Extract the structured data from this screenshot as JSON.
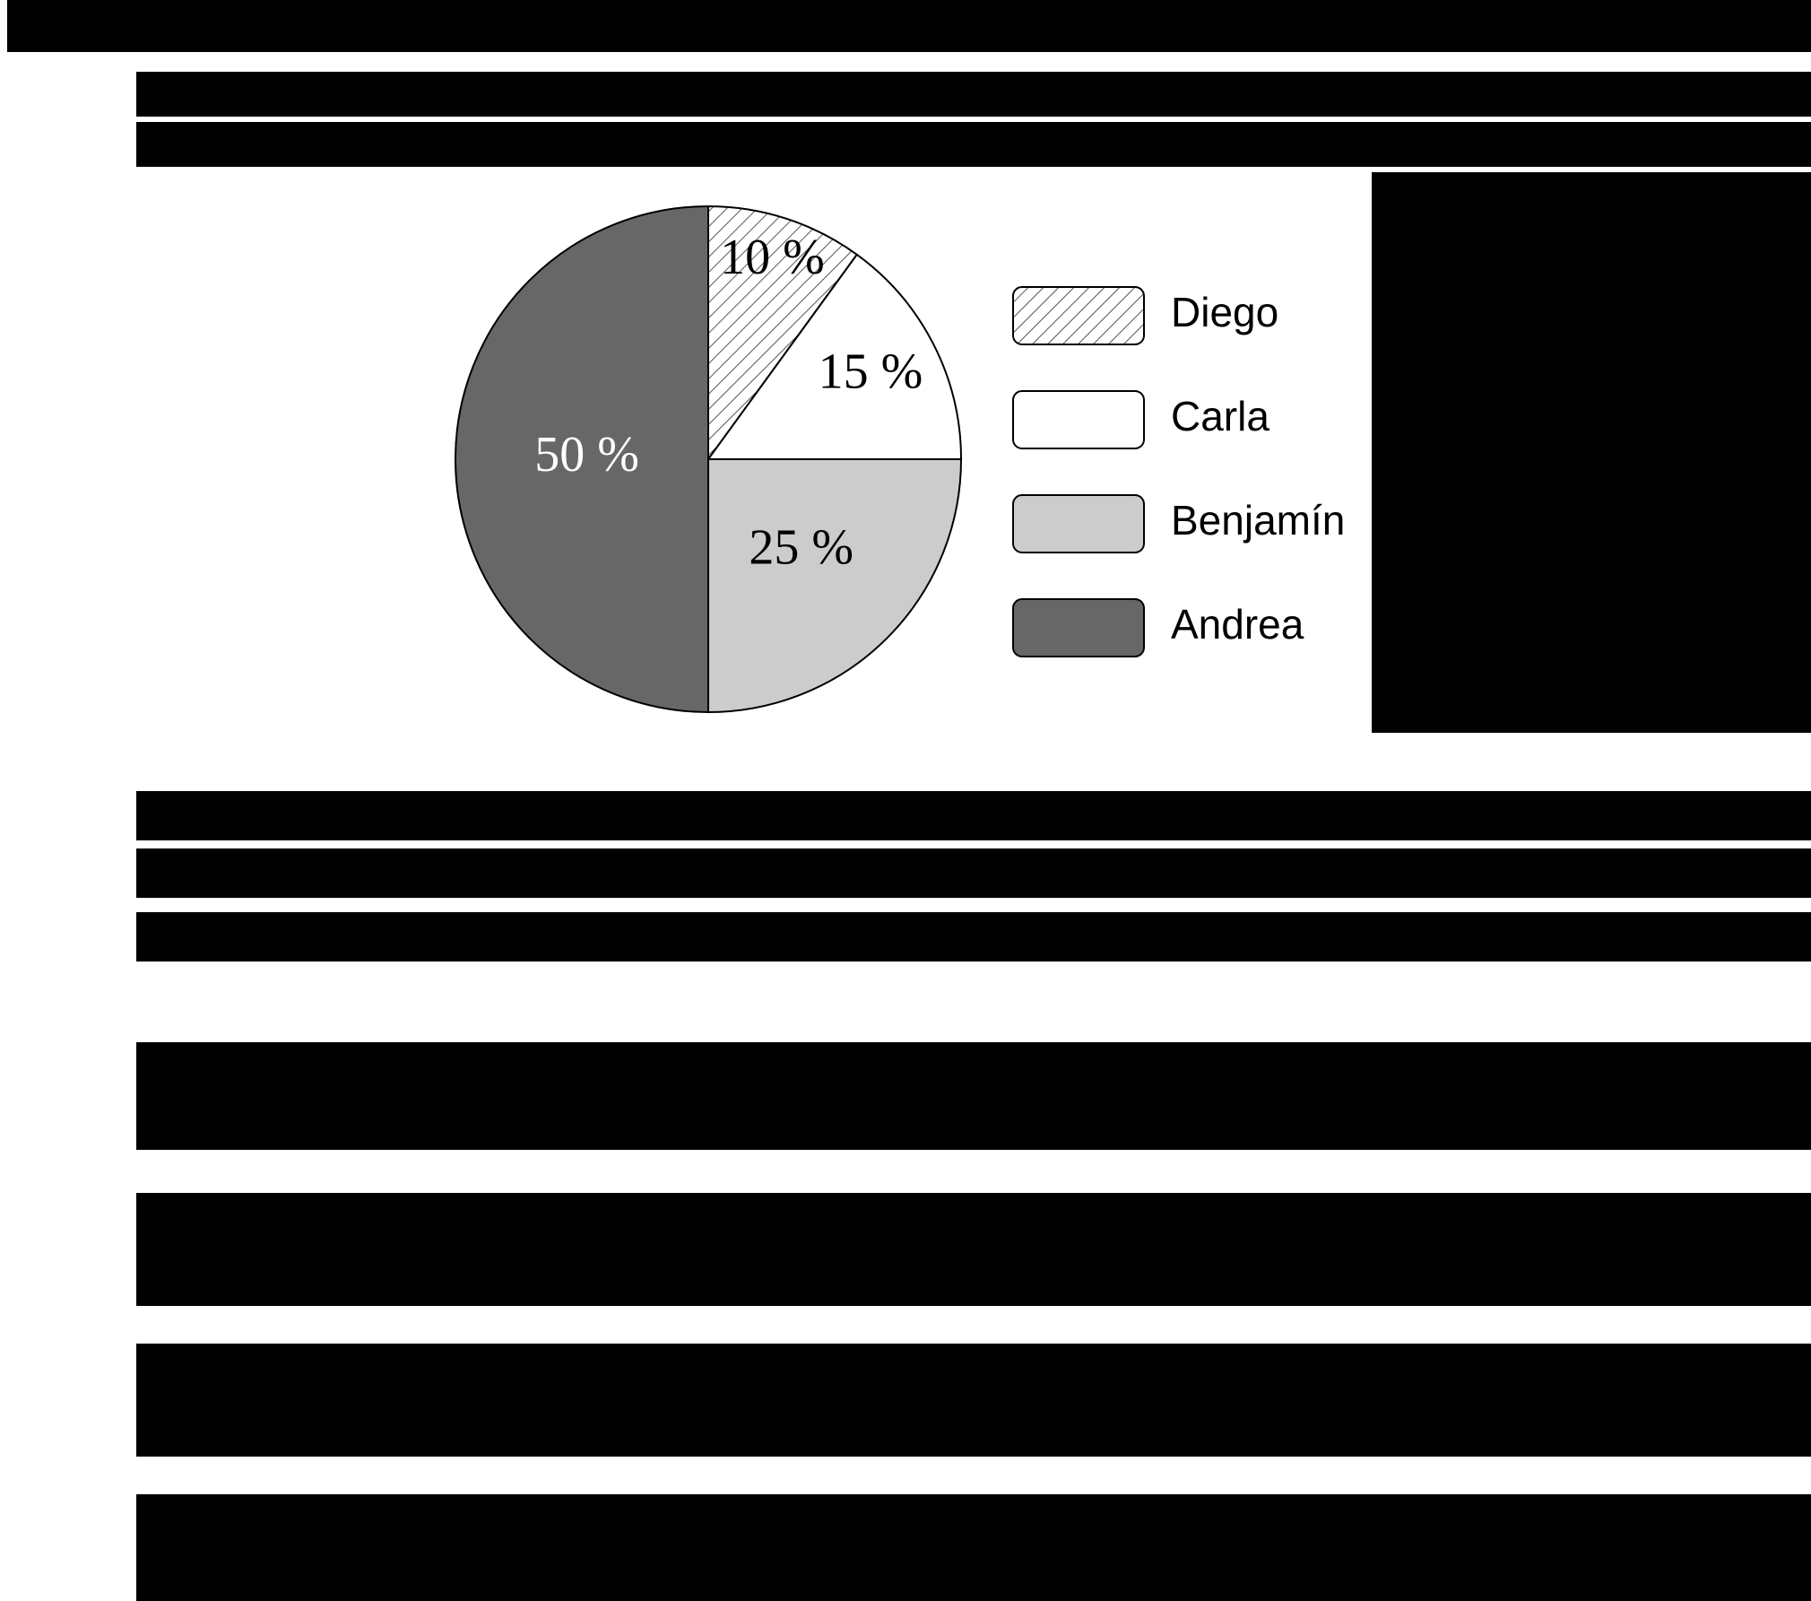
{
  "chart_data": {
    "type": "pie",
    "title": "",
    "categories": [
      "Diego",
      "Carla",
      "Benjamín",
      "Andrea"
    ],
    "values": [
      10,
      15,
      25,
      50
    ],
    "labels": [
      "10 %",
      "15 %",
      "25 %",
      "50 %"
    ],
    "fills": [
      "hatch",
      "#ffffff",
      "#cccccc",
      "#676767"
    ],
    "label_colors": [
      "#000000",
      "#000000",
      "#000000",
      "#ffffff"
    ],
    "legend": {
      "position": "right",
      "entries": [
        "Diego",
        "Carla",
        "Benjamín",
        "Andrea"
      ]
    }
  }
}
